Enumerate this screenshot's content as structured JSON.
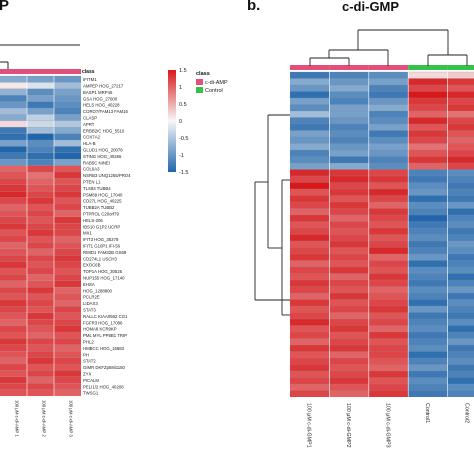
{
  "panel_a_title_fragment": "P",
  "panel_b_letter": "b.",
  "panel_b_title": "c-di-GMP",
  "legend": {
    "class_header": "class",
    "scale_ticks": [
      "1.5",
      "1",
      "0.5",
      "0",
      "-0.5",
      "-1",
      "-1.5"
    ],
    "entries": [
      {
        "label": "c-di-AMP",
        "color": "#e0507a"
      },
      {
        "label": "Control",
        "color": "#36c24a"
      }
    ]
  },
  "colors": {
    "high": "#d7191c",
    "mid": "#f7f7f7",
    "low": "#2166ac",
    "row_sep": "#8a8a8a",
    "dendro": "#222222"
  },
  "chart_data": [
    {
      "type": "heatmap",
      "panel": "a",
      "class_header": "class",
      "row_labels": [
        "IFITM1",
        "AMPEP HOG_27217",
        "BASP1 MRP45",
        "GSA HOG_27000",
        "HELS HOG_40228",
        "CORO7/FAM13 FAM16",
        "CLASP",
        "APRT",
        "ERBB2IC HOG_5510",
        "COX7A2",
        "HLA-B",
        "GLUD1 HOG_20078",
        "STING HOG_40265",
        "RAB5C NINEI",
        "COL6A3",
        "NSRB3 UNQ1255/PRO4",
        "PTEN L1",
        "TLS83 TUBB4",
        "PSM89 HOG_17040",
        "CD27L HOG_40225",
        "TUBB2A TUBB2",
        "PTPROL C20orf79",
        "HELS-206",
        "IBS10 G1P2 UCRP",
        "MX1",
        "IFIT3 HOG_35379",
        "IFIT1 G10P1 IFI-56",
        "RMID1 FAM32B GS69",
        "CD274L1 USCH3",
        "EXOC6B",
        "TOP1A HOG_30525",
        "NUP155 HOG_17140",
        "EHSA",
        "HOG_1288800",
        "PCLR2E",
        "LIDAX3",
        "STAT3",
        "RALLC KIAA0562 CG1",
        "FGFR3 HOG_17086",
        "HOMA8 KCR9KP",
        "PML MYL PP8B1 TRIP",
        "PHL2",
        "HMBCC HOG_15883",
        "PH",
        "STAT2",
        "GIMR DKFZp58ii1150",
        "ZYX",
        "PICALM",
        "PELI1/2 HOG_40208",
        "TWSG1"
      ],
      "column_labels": [
        "100 µM c-di-AMP 1",
        "100 µM c-di-AMP 2",
        "100 µM c-di-AMP 3"
      ],
      "class_colors": [
        "#e0507a",
        "#e0507a",
        "#e0507a"
      ],
      "values": [
        [
          -0.8,
          -0.9,
          -1.0
        ],
        [
          0.1,
          -0.2,
          -0.6
        ],
        [
          -0.7,
          -1.1,
          -0.9
        ],
        [
          -1.2,
          -0.9,
          -1.0
        ],
        [
          -1.0,
          -1.3,
          -1.1
        ],
        [
          -0.6,
          -0.9,
          -1.2
        ],
        [
          -0.8,
          -0.4,
          -0.9
        ],
        [
          0.2,
          -0.3,
          -0.5
        ],
        [
          -1.3,
          -0.6,
          -0.8
        ],
        [
          -1.4,
          -1.5,
          -1.2
        ],
        [
          -0.9,
          -1.1,
          -0.6
        ],
        [
          -1.5,
          -1.2,
          -1.4
        ],
        [
          -1.3,
          -1.4,
          -1.5
        ],
        [
          -1.0,
          -1.2,
          -0.9
        ],
        [
          1.0,
          1.2,
          1.1
        ],
        [
          1.1,
          0.9,
          1.3
        ],
        [
          1.2,
          1.0,
          1.1
        ],
        [
          1.3,
          1.1,
          1.2
        ],
        [
          1.4,
          1.2,
          1.3
        ],
        [
          1.2,
          1.3,
          1.1
        ],
        [
          1.0,
          1.1,
          1.2
        ],
        [
          1.1,
          1.2,
          1.0
        ],
        [
          1.2,
          1.1,
          1.3
        ],
        [
          1.3,
          1.2,
          1.2
        ],
        [
          1.1,
          1.3,
          1.2
        ],
        [
          1.2,
          1.1,
          1.0
        ],
        [
          1.0,
          1.2,
          1.1
        ],
        [
          1.1,
          1.0,
          1.2
        ],
        [
          1.2,
          1.2,
          1.3
        ],
        [
          1.3,
          1.1,
          1.2
        ],
        [
          1.1,
          1.2,
          1.1
        ],
        [
          1.2,
          1.0,
          1.2
        ],
        [
          1.0,
          1.1,
          1.3
        ],
        [
          1.2,
          1.3,
          1.0
        ],
        [
          1.1,
          1.1,
          1.1
        ],
        [
          1.3,
          1.2,
          1.0
        ],
        [
          1.2,
          1.1,
          1.2
        ],
        [
          1.1,
          1.3,
          1.1
        ],
        [
          1.0,
          1.2,
          1.2
        ],
        [
          1.2,
          1.1,
          1.3
        ],
        [
          1.1,
          1.0,
          1.1
        ],
        [
          1.3,
          1.2,
          1.2
        ],
        [
          1.2,
          1.1,
          1.0
        ],
        [
          1.1,
          1.2,
          1.1
        ],
        [
          1.0,
          1.3,
          1.2
        ],
        [
          1.2,
          1.1,
          1.1
        ],
        [
          1.1,
          1.2,
          1.3
        ],
        [
          1.3,
          1.0,
          1.2
        ],
        [
          1.2,
          1.2,
          1.1
        ],
        [
          1.1,
          1.1,
          1.0
        ]
      ]
    },
    {
      "type": "heatmap",
      "panel": "b",
      "title": "c-di-GMP",
      "column_labels": [
        "100 µM c-di-GMP1",
        "100 µM c-di-GMP2",
        "100 µM c-di-GMP3",
        "Control1",
        "Control2"
      ],
      "class_colors": [
        "#e0507a",
        "#e0507a",
        "#e0507a",
        "#36c24a",
        "#36c24a"
      ],
      "values": [
        [
          -1.3,
          -1.2,
          -1.1,
          0.2,
          0.3
        ],
        [
          -0.8,
          -1.0,
          -0.9,
          1.4,
          1.3
        ],
        [
          -1.0,
          -0.8,
          -1.2,
          1.2,
          1.1
        ],
        [
          -1.4,
          -1.1,
          -1.3,
          1.5,
          1.4
        ],
        [
          -0.9,
          -1.2,
          -1.0,
          1.3,
          1.2
        ],
        [
          -1.1,
          -0.9,
          -0.8,
          1.2,
          1.3
        ],
        [
          -0.6,
          -0.9,
          -1.2,
          1.0,
          0.9
        ],
        [
          -1.2,
          -1.0,
          -1.1,
          1.4,
          1.2
        ],
        [
          -1.3,
          -1.2,
          -0.9,
          1.1,
          1.3
        ],
        [
          -0.9,
          -1.1,
          -1.3,
          1.3,
          1.1
        ],
        [
          -1.0,
          -1.2,
          -1.1,
          1.2,
          1.0
        ],
        [
          -0.8,
          -1.0,
          -0.9,
          0.9,
          1.1
        ],
        [
          -1.2,
          -0.9,
          -1.0,
          1.1,
          1.2
        ],
        [
          -1.1,
          -1.3,
          -1.2,
          1.3,
          1.4
        ],
        [
          -0.9,
          -0.8,
          -1.1,
          1.0,
          1.2
        ],
        [
          1.4,
          1.3,
          1.2,
          -1.2,
          -1.1
        ],
        [
          1.2,
          1.4,
          1.3,
          -1.3,
          -1.2
        ],
        [
          1.5,
          1.2,
          1.1,
          -1.1,
          -1.3
        ],
        [
          1.1,
          1.3,
          1.4,
          -1.0,
          -1.2
        ],
        [
          1.3,
          1.1,
          1.2,
          -1.4,
          -1.3
        ],
        [
          1.2,
          1.3,
          1.0,
          -1.1,
          -1.0
        ],
        [
          1.0,
          1.2,
          1.3,
          -1.2,
          -1.4
        ],
        [
          1.3,
          1.0,
          1.2,
          -1.5,
          -1.2
        ],
        [
          1.1,
          1.2,
          1.1,
          -1.3,
          -1.1
        ],
        [
          1.2,
          1.1,
          1.3,
          -1.2,
          -1.3
        ],
        [
          1.4,
          1.2,
          1.1,
          -1.1,
          -1.2
        ],
        [
          1.1,
          1.3,
          1.2,
          -1.3,
          -1.0
        ],
        [
          1.2,
          1.1,
          1.4,
          -1.2,
          -1.1
        ],
        [
          1.3,
          1.2,
          1.0,
          -1.0,
          -1.3
        ],
        [
          1.0,
          1.1,
          1.2,
          -1.4,
          -1.2
        ],
        [
          1.2,
          1.3,
          1.1,
          -1.1,
          -1.1
        ],
        [
          1.1,
          1.0,
          1.3,
          -1.2,
          -1.4
        ],
        [
          1.3,
          1.2,
          1.2,
          -1.3,
          -1.2
        ],
        [
          1.2,
          1.1,
          1.0,
          -1.1,
          -1.0
        ],
        [
          1.0,
          1.3,
          1.1,
          -1.2,
          -1.3
        ],
        [
          1.3,
          1.1,
          1.2,
          -1.4,
          -1.1
        ],
        [
          1.1,
          1.2,
          1.3,
          -1.0,
          -1.2
        ],
        [
          1.2,
          1.0,
          1.1,
          -1.3,
          -1.3
        ],
        [
          1.4,
          1.2,
          1.2,
          -1.2,
          -1.1
        ],
        [
          1.1,
          1.3,
          1.0,
          -1.1,
          -1.4
        ],
        [
          1.2,
          1.1,
          1.3,
          -1.3,
          -1.2
        ],
        [
          1.0,
          1.2,
          1.1,
          -1.2,
          -1.0
        ],
        [
          1.3,
          1.3,
          1.2,
          -1.1,
          -1.3
        ],
        [
          1.1,
          1.0,
          1.2,
          -1.4,
          -1.2
        ],
        [
          1.2,
          1.2,
          1.1,
          -1.2,
          -1.1
        ],
        [
          1.3,
          1.1,
          1.0,
          -1.0,
          -1.3
        ],
        [
          1.1,
          1.2,
          1.3,
          -1.3,
          -1.2
        ],
        [
          1.2,
          1.3,
          1.1,
          -1.1,
          -1.4
        ],
        [
          1.0,
          1.1,
          1.2,
          -1.2,
          -1.1
        ],
        [
          1.2,
          1.0,
          1.3,
          -1.3,
          -1.2
        ]
      ]
    }
  ]
}
